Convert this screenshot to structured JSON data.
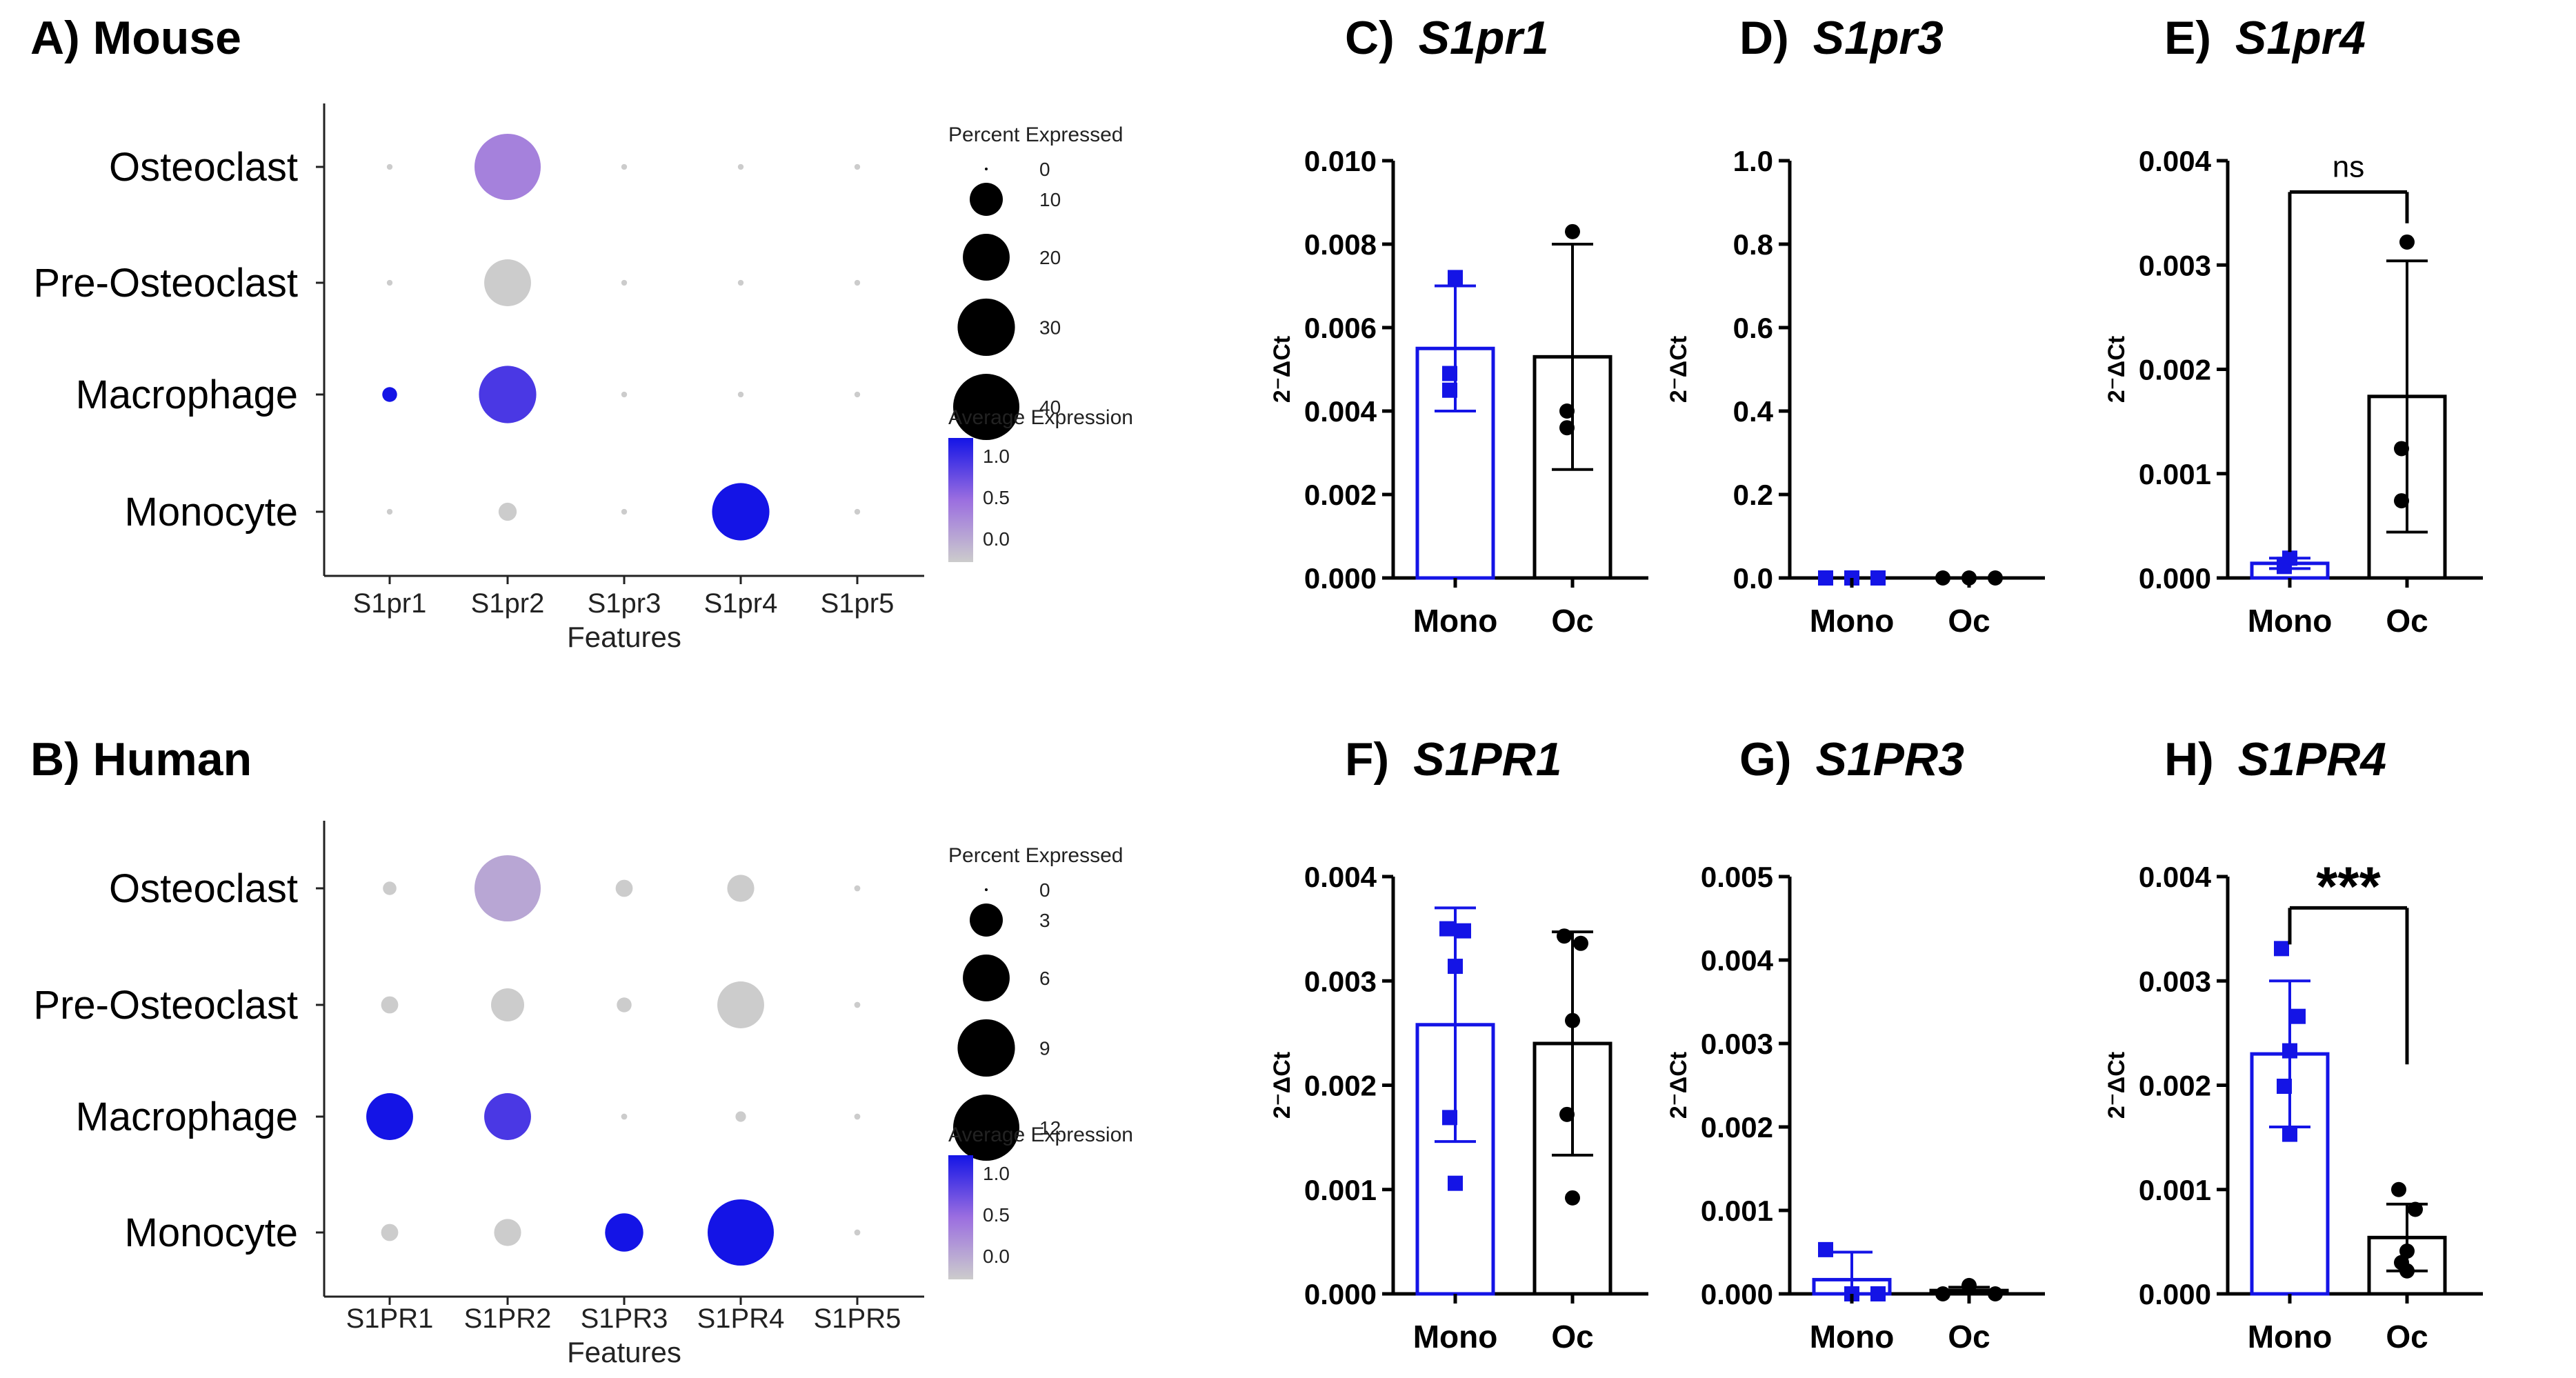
{
  "colors": {
    "blue": "#1414e6",
    "black": "#000000",
    "grey": "#cccccc",
    "purple": "#9b6ee0",
    "axis": "#222222",
    "bg": "#ffffff"
  },
  "panels": {
    "A": {
      "label": "A) Mouse"
    },
    "B": {
      "label": "B) Human"
    },
    "C": {
      "prefix": "C)",
      "gene": "S1pr1"
    },
    "D": {
      "prefix": "D)",
      "gene": "S1pr3"
    },
    "E": {
      "prefix": "E)",
      "gene": "S1pr4"
    },
    "F": {
      "prefix": "F)",
      "gene": "S1PR1"
    },
    "G": {
      "prefix": "G)",
      "gene": "S1PR3"
    },
    "H": {
      "prefix": "H)",
      "gene": "S1PR4"
    }
  },
  "chart_data": [
    {
      "id": "A",
      "type": "dotplot",
      "title": "A) Mouse",
      "xlabel": "Features",
      "features": [
        "S1pr1",
        "S1pr2",
        "S1pr3",
        "S1pr4",
        "S1pr5"
      ],
      "cell_types": [
        "Osteoclast",
        "Pre-Osteoclast",
        "Macrophage",
        "Monocyte"
      ],
      "percent_expressed": [
        [
          0.3,
          40,
          0.3,
          0.3,
          0.3
        ],
        [
          0.3,
          20,
          0.3,
          0.3,
          0.3
        ],
        [
          2,
          30,
          0.3,
          0.3,
          0.3
        ],
        [
          0.3,
          3,
          0.3,
          30,
          0.3
        ]
      ],
      "average_expression": [
        [
          0,
          0.6,
          0,
          0,
          0
        ],
        [
          0,
          0,
          0,
          0,
          0
        ],
        [
          1.5,
          1.2,
          0,
          0,
          0
        ],
        [
          0,
          0,
          0,
          1.6,
          0
        ]
      ],
      "size_legend": {
        "title": "Percent Expressed",
        "values": [
          0,
          10,
          20,
          30,
          40
        ],
        "max": 40
      },
      "color_legend": {
        "title": "Average Expression",
        "ticks": [
          "1.0",
          "0.5",
          "0.0"
        ],
        "range": [
          0,
          1.5
        ]
      }
    },
    {
      "id": "B",
      "type": "dotplot",
      "title": "B) Human",
      "xlabel": "Features",
      "features": [
        "S1PR1",
        "S1PR2",
        "S1PR3",
        "S1PR4",
        "S1PR5"
      ],
      "cell_types": [
        "Osteoclast",
        "Pre-Osteoclast",
        "Macrophage",
        "Monocyte"
      ],
      "percent_expressed": [
        [
          0.5,
          12,
          0.8,
          2,
          0.1
        ],
        [
          0.8,
          3,
          0.6,
          6,
          0.1
        ],
        [
          6,
          6,
          0.1,
          0.3,
          0.1
        ],
        [
          0.8,
          2,
          4,
          12,
          0.1
        ]
      ],
      "average_expression": [
        [
          0,
          0.3,
          0,
          0,
          0
        ],
        [
          0,
          0,
          0,
          0,
          0
        ],
        [
          1.5,
          1.2,
          0,
          0,
          0
        ],
        [
          0,
          0,
          1.5,
          1.5,
          0
        ]
      ],
      "size_legend": {
        "title": "Percent Expressed",
        "values": [
          0,
          3,
          6,
          9,
          12
        ],
        "max": 12
      },
      "color_legend": {
        "title": "Average Expression",
        "ticks": [
          "1.0",
          "0.5",
          "0.0"
        ],
        "range": [
          0,
          1.5
        ]
      }
    },
    {
      "id": "C",
      "type": "bar",
      "title": "C) S1pr1",
      "gene": "S1pr1",
      "ylabel": "2⁻ΔCt",
      "ylim": [
        0,
        0.01
      ],
      "yticks": [
        "0.000",
        "0.002",
        "0.004",
        "0.006",
        "0.008",
        "0.010"
      ],
      "categories": [
        "Mono",
        "Oc"
      ],
      "means": [
        0.0055,
        0.0053
      ],
      "sd": [
        0.0015,
        0.0027
      ],
      "points": [
        [
          0.0072,
          0.0049,
          0.0045
        ],
        [
          0.0083,
          0.004,
          0.0036
        ]
      ],
      "annotation": null
    },
    {
      "id": "D",
      "type": "bar",
      "title": "D) S1pr3",
      "gene": "S1pr3",
      "ylabel": "2⁻ΔCt",
      "ylim": [
        0,
        1.0
      ],
      "yticks": [
        "0.0",
        "0.2",
        "0.4",
        "0.6",
        "0.8",
        "1.0"
      ],
      "categories": [
        "Mono",
        "Oc"
      ],
      "means": [
        0.0,
        0.0
      ],
      "sd": [
        0,
        0
      ],
      "points": [
        [
          0.0,
          0.0,
          0.0
        ],
        [
          0.0,
          0.0,
          0.0
        ]
      ],
      "annotation": null
    },
    {
      "id": "E",
      "type": "bar",
      "title": "E) S1pr4",
      "gene": "S1pr4",
      "ylabel": "2⁻ΔCt",
      "ylim": [
        0,
        0.004
      ],
      "yticks": [
        "0.000",
        "0.001",
        "0.002",
        "0.003",
        "0.004"
      ],
      "categories": [
        "Mono",
        "Oc"
      ],
      "means": [
        0.00014,
        0.00174
      ],
      "sd": [
        5e-05,
        0.0013
      ],
      "points": [
        [
          0.00019,
          0.00013,
          0.00011
        ],
        [
          0.00322,
          0.00124,
          0.00074
        ]
      ],
      "annotation": "ns"
    },
    {
      "id": "F",
      "type": "bar",
      "title": "F) S1PR1",
      "gene": "S1PR1",
      "ylabel": "2⁻ΔCt",
      "ylim": [
        0,
        0.004
      ],
      "yticks": [
        "0.000",
        "0.001",
        "0.002",
        "0.003",
        "0.004"
      ],
      "categories": [
        "Mono",
        "Oc"
      ],
      "means": [
        0.00258,
        0.0024
      ],
      "sd": [
        0.00112,
        0.00107
      ],
      "points": [
        [
          0.0035,
          0.00348,
          0.00314,
          0.00169,
          0.00106
        ],
        [
          0.00343,
          0.00336,
          0.00262,
          0.00172,
          0.00092
        ]
      ],
      "annotation": null
    },
    {
      "id": "G",
      "type": "bar",
      "title": "G) S1PR3",
      "gene": "S1PR3",
      "ylabel": "2⁻ΔCt",
      "ylim": [
        0,
        0.005
      ],
      "yticks": [
        "0.000",
        "0.001",
        "0.002",
        "0.003",
        "0.004",
        "0.005"
      ],
      "categories": [
        "Mono",
        "Oc"
      ],
      "means": [
        0.00017,
        4e-05
      ],
      "sd": [
        0.00033,
        4e-05
      ],
      "points": [
        [
          0.00053,
          0.0,
          0.0
        ],
        [
          0.0,
          0.0001,
          0.0
        ]
      ],
      "annotation": null
    },
    {
      "id": "H",
      "type": "bar",
      "title": "H) S1PR4",
      "gene": "S1PR4",
      "ylabel": "2⁻ΔCt",
      "ylim": [
        0,
        0.004
      ],
      "yticks": [
        "0.000",
        "0.001",
        "0.002",
        "0.003",
        "0.004"
      ],
      "categories": [
        "Mono",
        "Oc"
      ],
      "means": [
        0.0023,
        0.00054
      ],
      "sd": [
        0.0007,
        0.00032
      ],
      "points": [
        [
          0.00331,
          0.00266,
          0.00233,
          0.00199,
          0.00153
        ],
        [
          0.001,
          0.00081,
          0.00041,
          0.0003,
          0.00022
        ]
      ],
      "annotation": "***"
    }
  ]
}
